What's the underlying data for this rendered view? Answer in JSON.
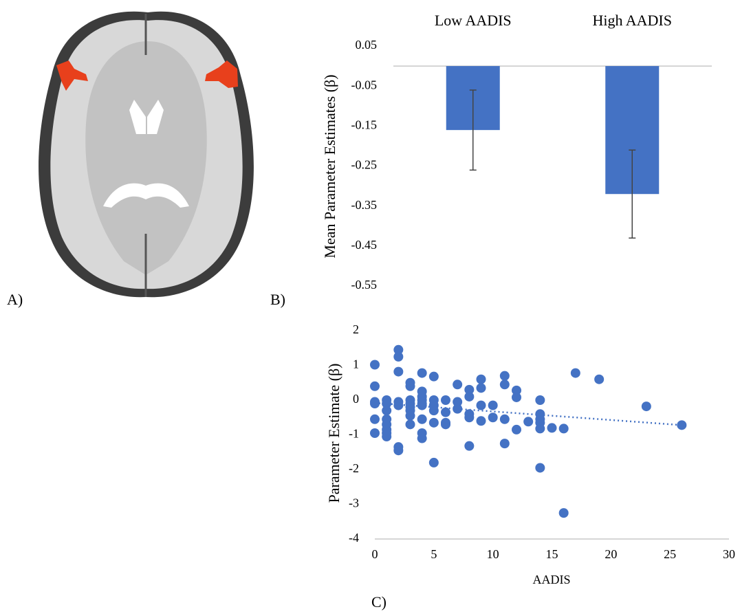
{
  "panel_labels": [
    "A)",
    "B)",
    "C)"
  ],
  "chart_data": [
    {
      "type": "bar",
      "categories": [
        "Low AADIS",
        "High AADIS"
      ],
      "y_label": "Mean Parameter Estimates (β)",
      "values": [
        -0.16,
        -0.32
      ],
      "errors": [
        0.1,
        0.11
      ],
      "color": "#4472c4",
      "ylim": [
        -0.55,
        0.05
      ],
      "yticks": [
        0.05,
        -0.05,
        -0.15,
        -0.25,
        -0.35,
        -0.45,
        -0.55
      ]
    },
    {
      "type": "scatter",
      "x_label": "AADIS",
      "y_label": "Parameter Estimate (β)",
      "xlim": [
        0,
        30
      ],
      "xticks": [
        0,
        5,
        10,
        15,
        20,
        25,
        30
      ],
      "ylim": [
        -4,
        2
      ],
      "yticks": [
        -4,
        -3,
        -2,
        -1,
        0,
        1,
        2
      ],
      "series": [
        {
          "color": "#4472c4",
          "x": [
            0,
            0,
            0,
            0,
            0,
            0,
            1,
            1,
            1,
            1,
            1,
            1,
            1,
            1,
            2,
            2,
            2,
            2,
            2,
            2,
            2,
            3,
            3,
            3,
            3,
            3,
            3,
            3,
            3,
            4,
            4,
            4,
            4,
            4,
            4,
            4,
            4,
            4,
            5,
            5,
            5,
            5,
            5,
            5,
            6,
            6,
            6,
            6,
            7,
            7,
            7,
            8,
            8,
            8,
            8,
            8,
            9,
            9,
            9,
            9,
            10,
            10,
            11,
            11,
            11,
            11,
            12,
            12,
            12,
            13,
            14,
            14,
            14,
            14,
            14,
            14,
            15,
            16,
            16,
            17,
            19,
            23,
            26
          ],
          "values": [
            1.02,
            0.4,
            -0.05,
            -0.1,
            -0.55,
            -0.95,
            0,
            -0.1,
            -0.3,
            -0.55,
            -0.7,
            -0.85,
            -0.95,
            -1.05,
            1.45,
            1.25,
            0.82,
            -0.05,
            -0.15,
            -1.35,
            -1.45,
            0.5,
            0.4,
            0,
            -0.1,
            -0.2,
            -0.3,
            -0.45,
            -0.7,
            0.78,
            0.25,
            0.1,
            0,
            -0.1,
            -0.15,
            -0.55,
            -0.95,
            -1.1,
            0.68,
            0,
            -0.15,
            -0.3,
            -0.65,
            -1.8,
            0,
            -0.35,
            -0.65,
            -0.7,
            0.45,
            -0.05,
            -0.25,
            0.3,
            0.1,
            -0.4,
            -0.5,
            -1.32,
            0.6,
            0.35,
            -0.15,
            -0.6,
            -0.15,
            -0.5,
            0.7,
            0.45,
            -0.55,
            -1.25,
            0.28,
            0.08,
            -0.85,
            -0.62,
            0,
            -0.4,
            -0.55,
            -0.65,
            -0.82,
            -1.95,
            -0.8,
            -0.82,
            -3.25,
            0.78,
            0.6,
            -0.18,
            -0.72
          ]
        }
      ],
      "trend": {
        "x": [
          0,
          26
        ],
        "values": [
          -0.08,
          -0.72
        ],
        "color": "#4472c4",
        "style": "dotted"
      }
    }
  ]
}
